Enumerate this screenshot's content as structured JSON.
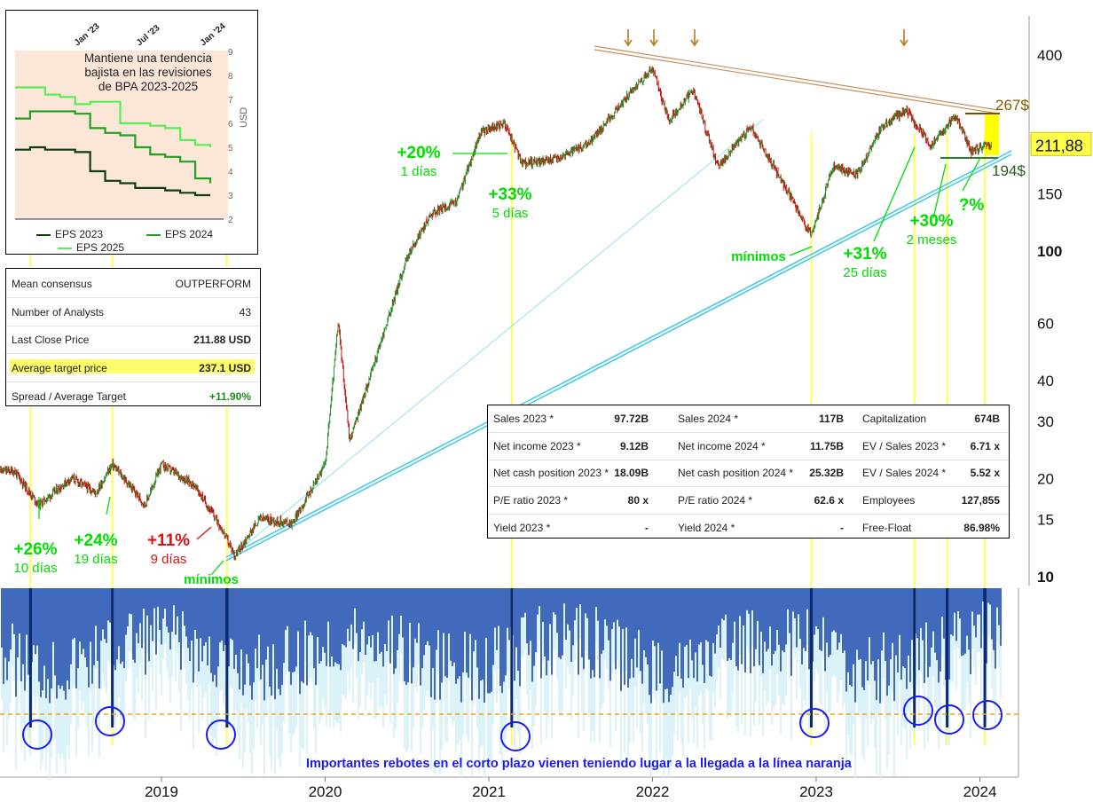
{
  "chart_data": {
    "type": "line",
    "x_ticks": [
      "2019",
      "2020",
      "2021",
      "2022",
      "2023",
      "2024"
    ],
    "y_ticks": [
      "400",
      "150",
      "100",
      "60",
      "40",
      "30",
      "20",
      "15",
      "10"
    ],
    "y_scale": "log",
    "ylim": [
      10,
      500
    ],
    "last_price_label": "211,88",
    "resistance_label": "267$",
    "support_label": "194$",
    "price_anchors": [
      {
        "x": "2018.1",
        "y": 21
      },
      {
        "x": "2018.25",
        "y": 16.5
      },
      {
        "x": "2018.45",
        "y": 20
      },
      {
        "x": "2018.6",
        "y": 18
      },
      {
        "x": "2018.7",
        "y": 22
      },
      {
        "x": "2018.9",
        "y": 16.5
      },
      {
        "x": "2019.0",
        "y": 22
      },
      {
        "x": "2019.2",
        "y": 19
      },
      {
        "x": "2019.35",
        "y": 14.5
      },
      {
        "x": "2019.45",
        "y": 11.5
      },
      {
        "x": "2019.6",
        "y": 15
      },
      {
        "x": "2019.8",
        "y": 14.5
      },
      {
        "x": "2020.0",
        "y": 22
      },
      {
        "x": "2020.08",
        "y": 60
      },
      {
        "x": "2020.15",
        "y": 26
      },
      {
        "x": "2020.3",
        "y": 45
      },
      {
        "x": "2020.5",
        "y": 95
      },
      {
        "x": "2020.65",
        "y": 130
      },
      {
        "x": "2020.8",
        "y": 140
      },
      {
        "x": "2020.95",
        "y": 230
      },
      {
        "x": "2021.1",
        "y": 245
      },
      {
        "x": "2021.2",
        "y": 185
      },
      {
        "x": "2021.4",
        "y": 190
      },
      {
        "x": "2021.6",
        "y": 210
      },
      {
        "x": "2021.9",
        "y": 320
      },
      {
        "x": "2022.0",
        "y": 360
      },
      {
        "x": "2022.1",
        "y": 250
      },
      {
        "x": "2022.25",
        "y": 310
      },
      {
        "x": "2022.4",
        "y": 180
      },
      {
        "x": "2022.6",
        "y": 240
      },
      {
        "x": "2022.8",
        "y": 160
      },
      {
        "x": "2022.97",
        "y": 110
      },
      {
        "x": "2023.1",
        "y": 180
      },
      {
        "x": "2023.25",
        "y": 170
      },
      {
        "x": "2023.4",
        "y": 240
      },
      {
        "x": "2023.55",
        "y": 270
      },
      {
        "x": "2023.7",
        "y": 210
      },
      {
        "x": "2023.85",
        "y": 260
      },
      {
        "x": "2023.95",
        "y": 200
      },
      {
        "x": "2024.05",
        "y": 211.88
      }
    ],
    "lower_panel_note": "Importantes rebotes en el corto plazo vienen teniendo lugar a la llegada a la línea naranja",
    "annotations": [
      {
        "pct": "+26%",
        "sub": "10 días",
        "color": "#00dd00"
      },
      {
        "pct": "+24%",
        "sub": "19 días",
        "color": "#00dd00"
      },
      {
        "pct": "+11%",
        "sub": "9 días",
        "color": "#dd1111"
      },
      {
        "pct": "mínimos",
        "sub": "",
        "color": "#00dd00"
      },
      {
        "pct": "+20%",
        "sub": "1 días",
        "color": "#00dd00"
      },
      {
        "pct": "+33%",
        "sub": "5 días",
        "color": "#00dd00"
      },
      {
        "pct": "mínimos",
        "sub": "",
        "color": "#00dd00"
      },
      {
        "pct": "+31%",
        "sub": "25 días",
        "color": "#00dd00"
      },
      {
        "pct": "+30%",
        "sub": "2 meses",
        "color": "#00dd00"
      },
      {
        "pct": "?%",
        "sub": "",
        "color": "#00dd00"
      }
    ]
  },
  "eps_chart": {
    "note": "Mantiene una tendencia bajista en las revisiones de BPA 2023-2025",
    "x_ticks": [
      "Jan '23",
      "Jul '23",
      "Jan '24"
    ],
    "y_ticks": [
      "9",
      "8",
      "7",
      "6",
      "5",
      "4",
      "3",
      "2"
    ],
    "ylabel": "USD",
    "series": [
      {
        "name": "EPS 2023",
        "color": "#0d3d10",
        "values": [
          4.9,
          5.0,
          4.9,
          4.9,
          4.8,
          4.0,
          3.6,
          3.5,
          3.3,
          3.3,
          3.2,
          3.1,
          3.0,
          3.0
        ]
      },
      {
        "name": "EPS 2024",
        "color": "#1fa21f",
        "values": [
          6.2,
          6.5,
          6.5,
          6.5,
          6.4,
          5.8,
          5.6,
          5.5,
          5.0,
          4.7,
          4.6,
          4.4,
          3.7,
          3.5
        ]
      },
      {
        "name": "EPS 2025",
        "color": "#55ee55",
        "values": [
          7.5,
          7.5,
          7.2,
          7.1,
          6.8,
          6.9,
          6.9,
          6.0,
          6.0,
          5.9,
          5.8,
          5.3,
          5.1,
          5.0
        ]
      }
    ]
  },
  "consensus": {
    "rows": [
      {
        "label": "Mean consensus",
        "value": "OUTPERFORM"
      },
      {
        "label": "Number of Analysts",
        "value": "43"
      },
      {
        "label": "Last Close Price",
        "value": "211.88  USD"
      },
      {
        "label": "Average target price",
        "value": "237.1  USD"
      },
      {
        "label": "Spread / Average Target",
        "value": "+11.90%"
      }
    ]
  },
  "fundamentals": {
    "rows": [
      [
        "Sales 2023 *",
        "97.72B",
        "Sales 2024 *",
        "117B",
        "Capitalization",
        "674B"
      ],
      [
        "Net income 2023 *",
        "9.12B",
        "Net income 2024 *",
        "11.75B",
        "EV / Sales 2023 *",
        "6.71 x"
      ],
      [
        "Net cash position 2023 *",
        "18.09B",
        "Net cash position 2024 *",
        "25.32B",
        "EV / Sales 2024 *",
        "5.52 x"
      ],
      [
        "P/E ratio 2023 *",
        "80 x",
        "P/E ratio 2024 *",
        "62.6 x",
        "Employees",
        "127,855"
      ],
      [
        "Yield 2023 *",
        "-",
        "Yield 2024 *",
        "-",
        "Free-Float",
        "86.98%"
      ]
    ]
  },
  "colors": {
    "candle_green": "#2a8f2a",
    "candle_red": "#cc1111",
    "resistance": "#c89060",
    "support": "#3ec8e8",
    "vline": "#ffff55",
    "osc_blue": "#0a3aa8",
    "osc_light": "#cdeef5",
    "orange_line": "#f0a020",
    "circle": "#1a1aff"
  }
}
